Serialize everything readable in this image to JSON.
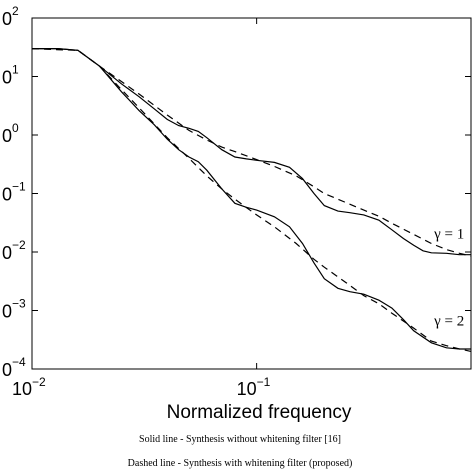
{
  "chart_data": {
    "type": "line",
    "xscale": "log",
    "yscale": "log",
    "xlim": [
      0.01,
      0.9
    ],
    "ylim": [
      0.0001,
      100
    ],
    "xlabel": "Normalized frequency",
    "ylabel": "",
    "grid": false,
    "x_ticks": [
      {
        "value": 0.01,
        "base": "10",
        "exp": "−2"
      },
      {
        "value": 0.1,
        "base": "10",
        "exp": "−1"
      }
    ],
    "y_ticks": [
      {
        "value": 100,
        "base": "0",
        "exp": "2"
      },
      {
        "value": 10,
        "base": "0",
        "exp": "1"
      },
      {
        "value": 1,
        "base": "0",
        "exp": "0"
      },
      {
        "value": 0.1,
        "base": "0",
        "exp": "−1"
      },
      {
        "value": 0.01,
        "base": "0",
        "exp": "−2"
      },
      {
        "value": 0.001,
        "base": "0",
        "exp": "−3"
      },
      {
        "value": 0.0001,
        "base": "0",
        "exp": "−4"
      }
    ],
    "series": [
      {
        "style": "solid",
        "label_ref": "γ = 1",
        "points": [
          [
            0.01,
            30
          ],
          [
            0.013,
            30
          ],
          [
            0.016,
            28
          ],
          [
            0.02,
            15
          ],
          [
            0.025,
            7.5
          ],
          [
            0.03,
            4.5
          ],
          [
            0.035,
            2.8
          ],
          [
            0.04,
            1.85
          ],
          [
            0.045,
            1.45
          ],
          [
            0.05,
            1.3
          ],
          [
            0.055,
            1.15
          ],
          [
            0.06,
            0.9
          ],
          [
            0.07,
            0.56
          ],
          [
            0.08,
            0.42
          ],
          [
            0.09,
            0.39
          ],
          [
            0.1,
            0.37
          ],
          [
            0.12,
            0.34
          ],
          [
            0.14,
            0.28
          ],
          [
            0.16,
            0.18
          ],
          [
            0.18,
            0.1
          ],
          [
            0.2,
            0.062
          ],
          [
            0.23,
            0.05
          ],
          [
            0.26,
            0.047
          ],
          [
            0.3,
            0.043
          ],
          [
            0.35,
            0.035
          ],
          [
            0.4,
            0.024
          ],
          [
            0.45,
            0.017
          ],
          [
            0.5,
            0.013
          ],
          [
            0.55,
            0.0105
          ],
          [
            0.6,
            0.0097
          ],
          [
            0.7,
            0.0095
          ],
          [
            0.8,
            0.009
          ],
          [
            0.9,
            0.009
          ]
        ]
      },
      {
        "style": "dashed",
        "label_ref": "γ = 1",
        "points": [
          [
            0.01,
            30
          ],
          [
            0.016,
            28
          ],
          [
            0.02,
            15
          ],
          [
            0.025,
            8.2
          ],
          [
            0.03,
            5.0
          ],
          [
            0.04,
            2.2
          ],
          [
            0.05,
            1.2
          ],
          [
            0.06,
            0.82
          ],
          [
            0.07,
            0.62
          ],
          [
            0.08,
            0.52
          ],
          [
            0.1,
            0.38
          ],
          [
            0.12,
            0.29
          ],
          [
            0.15,
            0.2
          ],
          [
            0.18,
            0.13
          ],
          [
            0.2,
            0.1
          ],
          [
            0.25,
            0.07
          ],
          [
            0.3,
            0.052
          ],
          [
            0.35,
            0.041
          ],
          [
            0.4,
            0.031
          ],
          [
            0.5,
            0.02
          ],
          [
            0.6,
            0.014
          ],
          [
            0.7,
            0.011
          ],
          [
            0.8,
            0.0095
          ],
          [
            0.9,
            0.0085
          ]
        ]
      },
      {
        "style": "solid",
        "label_ref": "γ = 2",
        "points": [
          [
            0.01,
            30
          ],
          [
            0.013,
            30
          ],
          [
            0.016,
            28
          ],
          [
            0.02,
            15
          ],
          [
            0.025,
            5.5
          ],
          [
            0.03,
            2.6
          ],
          [
            0.035,
            1.5
          ],
          [
            0.04,
            0.85
          ],
          [
            0.045,
            0.56
          ],
          [
            0.05,
            0.42
          ],
          [
            0.055,
            0.35
          ],
          [
            0.06,
            0.25
          ],
          [
            0.07,
            0.12
          ],
          [
            0.08,
            0.068
          ],
          [
            0.09,
            0.058
          ],
          [
            0.1,
            0.052
          ],
          [
            0.12,
            0.04
          ],
          [
            0.14,
            0.027
          ],
          [
            0.16,
            0.014
          ],
          [
            0.18,
            0.0065
          ],
          [
            0.2,
            0.0035
          ],
          [
            0.23,
            0.0024
          ],
          [
            0.26,
            0.0021
          ],
          [
            0.3,
            0.0019
          ],
          [
            0.35,
            0.0015
          ],
          [
            0.4,
            0.0011
          ],
          [
            0.45,
            0.0007
          ],
          [
            0.5,
            0.00045
          ],
          [
            0.6,
            0.00028
          ],
          [
            0.7,
            0.00023
          ],
          [
            0.8,
            0.00022
          ],
          [
            0.9,
            0.00022
          ]
        ]
      },
      {
        "style": "dashed",
        "label_ref": "γ = 2",
        "points": [
          [
            0.01,
            30
          ],
          [
            0.016,
            28
          ],
          [
            0.02,
            15
          ],
          [
            0.025,
            6.0
          ],
          [
            0.03,
            2.9
          ],
          [
            0.04,
            0.9
          ],
          [
            0.05,
            0.4
          ],
          [
            0.06,
            0.2
          ],
          [
            0.07,
            0.12
          ],
          [
            0.08,
            0.08
          ],
          [
            0.1,
            0.043
          ],
          [
            0.12,
            0.027
          ],
          [
            0.15,
            0.014
          ],
          [
            0.18,
            0.0075
          ],
          [
            0.2,
            0.0055
          ],
          [
            0.25,
            0.003
          ],
          [
            0.3,
            0.0018
          ],
          [
            0.35,
            0.0013
          ],
          [
            0.4,
            0.0009
          ],
          [
            0.5,
            0.0005
          ],
          [
            0.6,
            0.0003
          ],
          [
            0.7,
            0.00025
          ],
          [
            0.8,
            0.00022
          ],
          [
            0.9,
            0.0002
          ]
        ]
      }
    ],
    "annotations": [
      {
        "text": "γ = 1",
        "x": 0.72,
        "y": 0.017
      },
      {
        "text": "γ = 2",
        "x": 0.72,
        "y": 0.00055
      }
    ]
  },
  "caption": {
    "line1": "Solid line - Synthesis without whitening filter [16]",
    "line2": "Dashed line - Synthesis with whitening filter (proposed)"
  }
}
